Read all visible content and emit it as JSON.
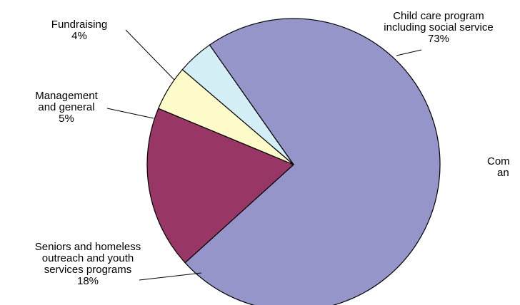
{
  "chart_data": {
    "type": "pie",
    "title": "",
    "start_angle_deg": -125,
    "slices": [
      {
        "label_lines": [
          "Child care program",
          "including social service"
        ],
        "percent_label": "73%",
        "value": 73,
        "color": "#9695c9"
      },
      {
        "label_lines": [
          "Seniors and homeless",
          "outreach and youth",
          "services programs"
        ],
        "percent_label": "18%",
        "value": 18,
        "color": "#983765"
      },
      {
        "label_lines": [
          "Management",
          "and general"
        ],
        "percent_label": "5%",
        "value": 5,
        "color": "#fefbcb"
      },
      {
        "label_lines": [
          "Fundraising"
        ],
        "percent_label": "4%",
        "value": 4,
        "color": "#d4eef5"
      }
    ],
    "partial_label_lines": [
      "Com",
      "an"
    ]
  }
}
